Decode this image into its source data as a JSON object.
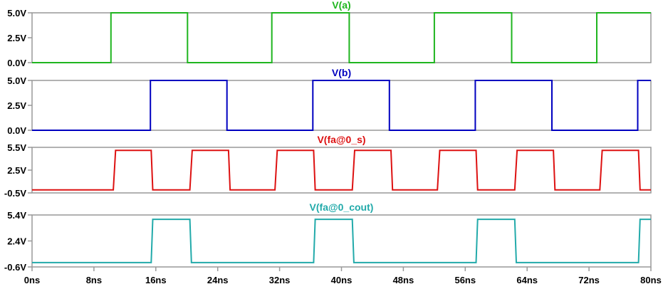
{
  "chart_data": [
    {
      "type": "line",
      "title": "V(a)",
      "color": "#1fb51f",
      "ylim": [
        0.0,
        5.0
      ],
      "yticks": [
        "5.0V",
        "2.5V",
        "0.0V"
      ],
      "yticks_values": [
        5.0,
        2.5,
        0.0
      ],
      "x": [
        0,
        10.2,
        10.2,
        20.1,
        20.1,
        31.0,
        31.0,
        41.0,
        41.0,
        52.0,
        52.0,
        62.0,
        62.0,
        73.0,
        73.0,
        80
      ],
      "y": [
        0,
        0,
        5.0,
        5.0,
        0,
        0,
        5.0,
        5.0,
        0,
        0,
        5.0,
        5.0,
        0,
        0,
        5.0,
        5.0
      ]
    },
    {
      "type": "line",
      "title": "V(b)",
      "color": "#0000c0",
      "ylim": [
        0.0,
        5.0
      ],
      "yticks": [
        "5.0V",
        "2.5V",
        "0.0V"
      ],
      "yticks_values": [
        5.0,
        2.5,
        0.0
      ],
      "x": [
        0,
        15.3,
        15.3,
        25.2,
        25.2,
        36.3,
        36.3,
        46.2,
        46.2,
        57.3,
        57.3,
        67.2,
        67.2,
        78.3,
        78.3,
        80
      ],
      "y": [
        0,
        0,
        5.0,
        5.0,
        0,
        0,
        5.0,
        5.0,
        0,
        0,
        5.0,
        5.0,
        0,
        0,
        5.0,
        5.0
      ]
    },
    {
      "type": "line",
      "title": "V(fa@0_s)",
      "color": "#dd1111",
      "ylim": [
        -0.5,
        5.5
      ],
      "yticks": [
        "5.5V",
        "2.5V",
        "-0.5V"
      ],
      "yticks_values": [
        5.5,
        2.5,
        -0.5
      ],
      "x": [
        0,
        10.5,
        10.8,
        15.4,
        15.6,
        20.4,
        20.7,
        25.4,
        25.6,
        31.4,
        31.7,
        36.4,
        36.6,
        41.4,
        41.7,
        46.4,
        46.6,
        52.4,
        52.7,
        57.4,
        57.6,
        62.4,
        62.7,
        67.4,
        67.6,
        73.4,
        73.7,
        78.4,
        78.6,
        80
      ],
      "y": [
        -0.1,
        -0.1,
        5.1,
        5.1,
        -0.1,
        -0.1,
        5.1,
        5.1,
        -0.1,
        -0.1,
        5.1,
        5.1,
        -0.1,
        -0.1,
        5.1,
        5.1,
        -0.1,
        -0.1,
        5.1,
        5.1,
        -0.1,
        -0.1,
        5.1,
        5.1,
        -0.1,
        -0.1,
        5.1,
        5.1,
        -0.1,
        -0.1
      ]
    },
    {
      "type": "line",
      "title": "V(fa@0_cout)",
      "color": "#22aaaa",
      "ylim": [
        -0.6,
        5.4
      ],
      "yticks": [
        "5.4V",
        "2.4V",
        "-0.6V"
      ],
      "yticks_values": [
        5.4,
        2.4,
        -0.6
      ],
      "x": [
        0,
        15.4,
        15.6,
        20.4,
        20.6,
        36.4,
        36.6,
        41.4,
        41.6,
        57.4,
        57.6,
        62.4,
        62.6,
        78.4,
        78.6,
        80
      ],
      "y": [
        -0.1,
        -0.1,
        4.9,
        4.9,
        -0.1,
        -0.1,
        4.9,
        4.9,
        -0.1,
        -0.1,
        4.9,
        4.9,
        -0.1,
        -0.1,
        4.9,
        4.9
      ]
    }
  ],
  "x_axis": {
    "xlim": [
      0,
      80
    ],
    "ticks": [
      "0ns",
      "8ns",
      "16ns",
      "24ns",
      "32ns",
      "40ns",
      "48ns",
      "56ns",
      "64ns",
      "72ns",
      "80ns"
    ],
    "tick_values": [
      0,
      8,
      16,
      24,
      32,
      40,
      48,
      56,
      64,
      72,
      80
    ]
  },
  "grid": false
}
